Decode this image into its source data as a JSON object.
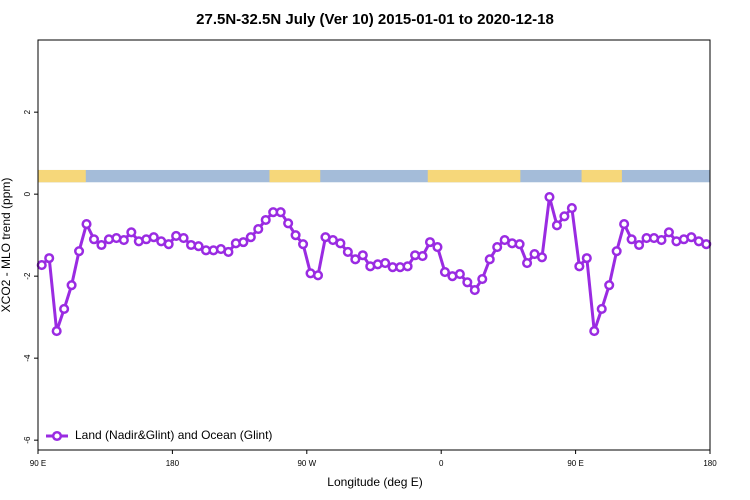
{
  "chart_data": {
    "type": "line",
    "title": "27.5N-32.5N July (Ver 10)   2015-01-01 to 2020-12-18",
    "x_label": "Longitude (deg E)",
    "y_label": "XCO2 - MLO trend (ppm)",
    "xlim": [
      90,
      540
    ],
    "ylim": [
      -6.24,
      3.76
    ],
    "xticks": [
      {
        "value": 90,
        "label": "90 E"
      },
      180,
      {
        "value": 270,
        "label": "90 W"
      },
      {
        "value": 360,
        "label": "0"
      },
      {
        "value": 450,
        "label": "90 E"
      },
      {
        "value": 540,
        "label": "180"
      }
    ],
    "yticks": [
      -6,
      -4,
      -2,
      0,
      2
    ],
    "surface_band": {
      "ylim": [
        0.29,
        0.59
      ],
      "ocean_color": "#a4bcd9",
      "land_color": "#f6d77a",
      "land_ranges": [
        [
          90,
          122
        ],
        [
          245,
          279
        ],
        [
          351,
          413
        ],
        [
          454,
          481
        ]
      ]
    },
    "legend": "bottom-left",
    "x": [
      92.5,
      97.5,
      102.5,
      107.5,
      112.5,
      117.5,
      122.5,
      127.5,
      132.5,
      137.5,
      142.5,
      147.5,
      152.5,
      157.5,
      162.5,
      167.5,
      172.5,
      177.5,
      182.5,
      187.5,
      192.5,
      197.5,
      202.5,
      207.5,
      212.5,
      217.5,
      222.5,
      227.5,
      232.5,
      237.5,
      242.5,
      247.5,
      252.5,
      257.5,
      262.5,
      267.5,
      272.5,
      277.5,
      282.5,
      287.5,
      292.5,
      297.5,
      302.5,
      307.5,
      312.5,
      317.5,
      322.5,
      327.5,
      332.5,
      337.5,
      342.5,
      347.5,
      352.5,
      357.5,
      362.5,
      367.5,
      372.5,
      377.5,
      382.5,
      387.5,
      392.5,
      397.5,
      402.5,
      407.5,
      412.5,
      417.5,
      422.5,
      427.5,
      432.5,
      437.5,
      442.5,
      447.5,
      452.5,
      457.5,
      462.5,
      467.5,
      472.5,
      477.5,
      482.5,
      487.5,
      492.5,
      497.5,
      502.5,
      507.5,
      512.5,
      517.5,
      522.5,
      527.5,
      532.5,
      537.5
    ],
    "series": [
      {
        "name": "Land (Nadir&Glint) and Ocean (Glint)",
        "color": "#9a2be2",
        "values": [
          -1.73,
          -1.56,
          -3.34,
          -2.8,
          -2.22,
          -1.39,
          -0.73,
          -1.1,
          -1.24,
          -1.1,
          -1.07,
          -1.12,
          -0.93,
          -1.15,
          -1.1,
          -1.05,
          -1.15,
          -1.22,
          -1.02,
          -1.07,
          -1.24,
          -1.27,
          -1.37,
          -1.37,
          -1.34,
          -1.41,
          -1.2,
          -1.17,
          -1.05,
          -0.85,
          -0.63,
          -0.44,
          -0.44,
          -0.71,
          -1.0,
          -1.22,
          -1.93,
          -1.98,
          -1.05,
          -1.12,
          -1.2,
          -1.41,
          -1.59,
          -1.49,
          -1.76,
          -1.71,
          -1.68,
          -1.78,
          -1.78,
          -1.76,
          -1.49,
          -1.51,
          -1.17,
          -1.29,
          -1.9,
          -2.0,
          -1.95,
          -2.15,
          -2.34,
          -2.07,
          -1.59,
          -1.29,
          -1.12,
          -1.2,
          -1.22,
          -1.68,
          -1.46,
          -1.54,
          -0.07,
          -0.76,
          -0.54,
          -0.34,
          -1.76,
          -1.56,
          -3.34,
          -2.8,
          -2.22,
          -1.39,
          -0.73,
          -1.1,
          -1.24,
          -1.07,
          -1.07,
          -1.12,
          -0.93,
          -1.15,
          -1.1,
          -1.05,
          -1.15,
          -1.22
        ]
      }
    ]
  }
}
